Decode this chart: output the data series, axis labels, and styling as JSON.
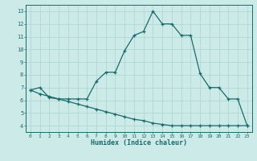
{
  "title": "",
  "xlabel": "Humidex (Indice chaleur)",
  "ylabel": "",
  "bg_color": "#cceae7",
  "grid_color": "#b0d8d4",
  "line_color": "#1a6b6b",
  "xlim": [
    -0.5,
    23.5
  ],
  "ylim": [
    3.5,
    13.5
  ],
  "yticks": [
    4,
    5,
    6,
    7,
    8,
    9,
    10,
    11,
    12,
    13
  ],
  "xticks": [
    0,
    1,
    2,
    3,
    4,
    5,
    6,
    7,
    8,
    9,
    10,
    11,
    12,
    13,
    14,
    15,
    16,
    17,
    18,
    19,
    20,
    21,
    22,
    23
  ],
  "series1_x": [
    0,
    1,
    2,
    3,
    4,
    5,
    6,
    7,
    8,
    9,
    10,
    11,
    12,
    13,
    14,
    15,
    16,
    17,
    18,
    19,
    20,
    21,
    22,
    23
  ],
  "series1_y": [
    6.8,
    7.0,
    6.2,
    6.1,
    6.1,
    6.1,
    6.1,
    7.5,
    8.2,
    8.2,
    9.9,
    11.1,
    11.4,
    13.0,
    12.0,
    12.0,
    11.1,
    11.1,
    8.1,
    7.0,
    7.0,
    6.1,
    6.1,
    4.0
  ],
  "series2_x": [
    0,
    1,
    2,
    3,
    4,
    5,
    6,
    7,
    8,
    9,
    10,
    11,
    12,
    13,
    14,
    15,
    16,
    17,
    18,
    19,
    20,
    21,
    22,
    23
  ],
  "series2_y": [
    6.8,
    6.5,
    6.3,
    6.1,
    5.9,
    5.7,
    5.5,
    5.3,
    5.1,
    4.9,
    4.7,
    4.5,
    4.4,
    4.2,
    4.1,
    4.0,
    4.0,
    4.0,
    4.0,
    4.0,
    4.0,
    4.0,
    4.0,
    4.0
  ]
}
